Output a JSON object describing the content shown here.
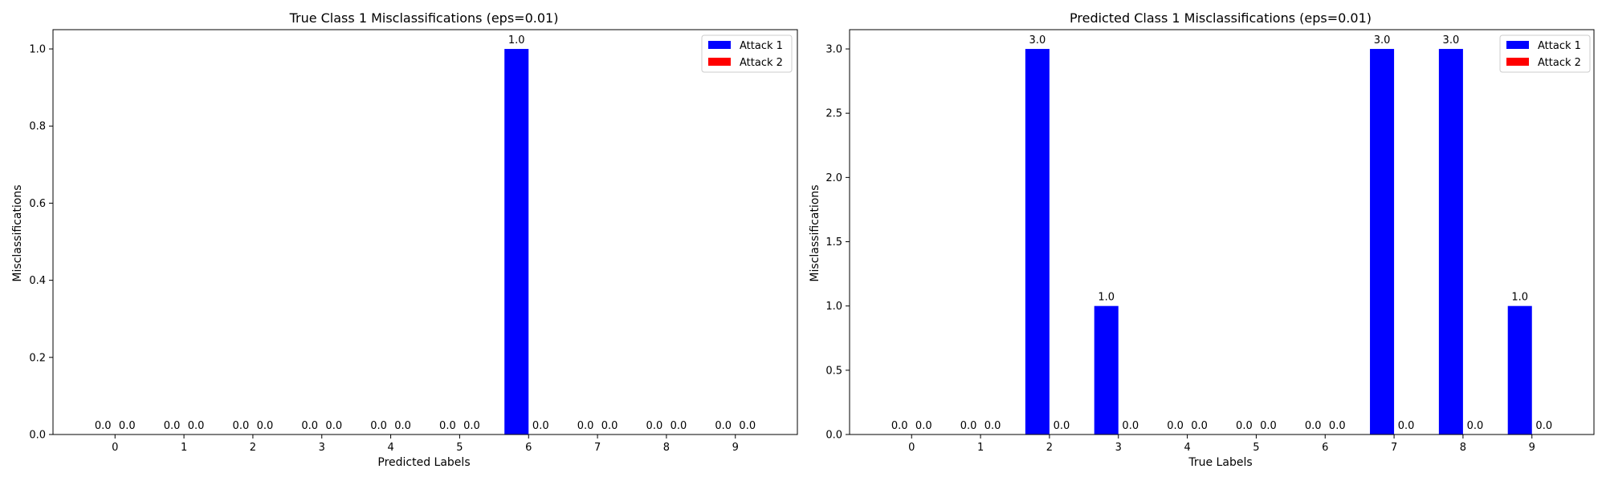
{
  "chart_data": [
    {
      "type": "bar",
      "title": "True Class 1 Misclassifications (eps=0.01)",
      "xlabel": "Predicted Labels",
      "ylabel": "Misclassifications",
      "categories": [
        "0",
        "1",
        "2",
        "3",
        "4",
        "5",
        "6",
        "7",
        "8",
        "9"
      ],
      "ylim": [
        0,
        1.05
      ],
      "yticks": [
        0.0,
        0.2,
        0.4,
        0.6,
        0.8,
        1.0
      ],
      "ytick_labels": [
        "0.0",
        "0.2",
        "0.4",
        "0.6",
        "0.8",
        "1.0"
      ],
      "legend_position": "top-right",
      "grid": false,
      "series": [
        {
          "name": "Attack 1",
          "color": "#0000ff",
          "values": [
            0,
            0,
            0,
            0,
            0,
            0,
            1,
            0,
            0,
            0
          ],
          "labels": [
            "0.0",
            "0.0",
            "0.0",
            "0.0",
            "0.0",
            "0.0",
            "1.0",
            "0.0",
            "0.0",
            "0.0"
          ]
        },
        {
          "name": "Attack 2",
          "color": "#ff0000",
          "values": [
            0,
            0,
            0,
            0,
            0,
            0,
            0,
            0,
            0,
            0
          ],
          "labels": [
            "0.0",
            "0.0",
            "0.0",
            "0.0",
            "0.0",
            "0.0",
            "0.0",
            "0.0",
            "0.0",
            "0.0"
          ]
        }
      ]
    },
    {
      "type": "bar",
      "title": "Predicted Class 1 Misclassifications (eps=0.01)",
      "xlabel": "True Labels",
      "ylabel": "Misclassifications",
      "categories": [
        "0",
        "1",
        "2",
        "3",
        "4",
        "5",
        "6",
        "7",
        "8",
        "9"
      ],
      "ylim": [
        0,
        3.15
      ],
      "yticks": [
        0.0,
        0.5,
        1.0,
        1.5,
        2.0,
        2.5,
        3.0
      ],
      "ytick_labels": [
        "0.0",
        "0.5",
        "1.0",
        "1.5",
        "2.0",
        "2.5",
        "3.0"
      ],
      "legend_position": "top-right",
      "grid": false,
      "series": [
        {
          "name": "Attack 1",
          "color": "#0000ff",
          "values": [
            0,
            0,
            3,
            1,
            0,
            0,
            0,
            3,
            3,
            1
          ],
          "labels": [
            "0.0",
            "0.0",
            "3.0",
            "1.0",
            "0.0",
            "0.0",
            "0.0",
            "3.0",
            "3.0",
            "1.0"
          ]
        },
        {
          "name": "Attack 2",
          "color": "#ff0000",
          "values": [
            0,
            0,
            0,
            0,
            0,
            0,
            0,
            0,
            0,
            0
          ],
          "labels": [
            "0.0",
            "0.0",
            "0.0",
            "0.0",
            "0.0",
            "0.0",
            "0.0",
            "0.0",
            "0.0",
            "0.0"
          ]
        }
      ]
    }
  ]
}
